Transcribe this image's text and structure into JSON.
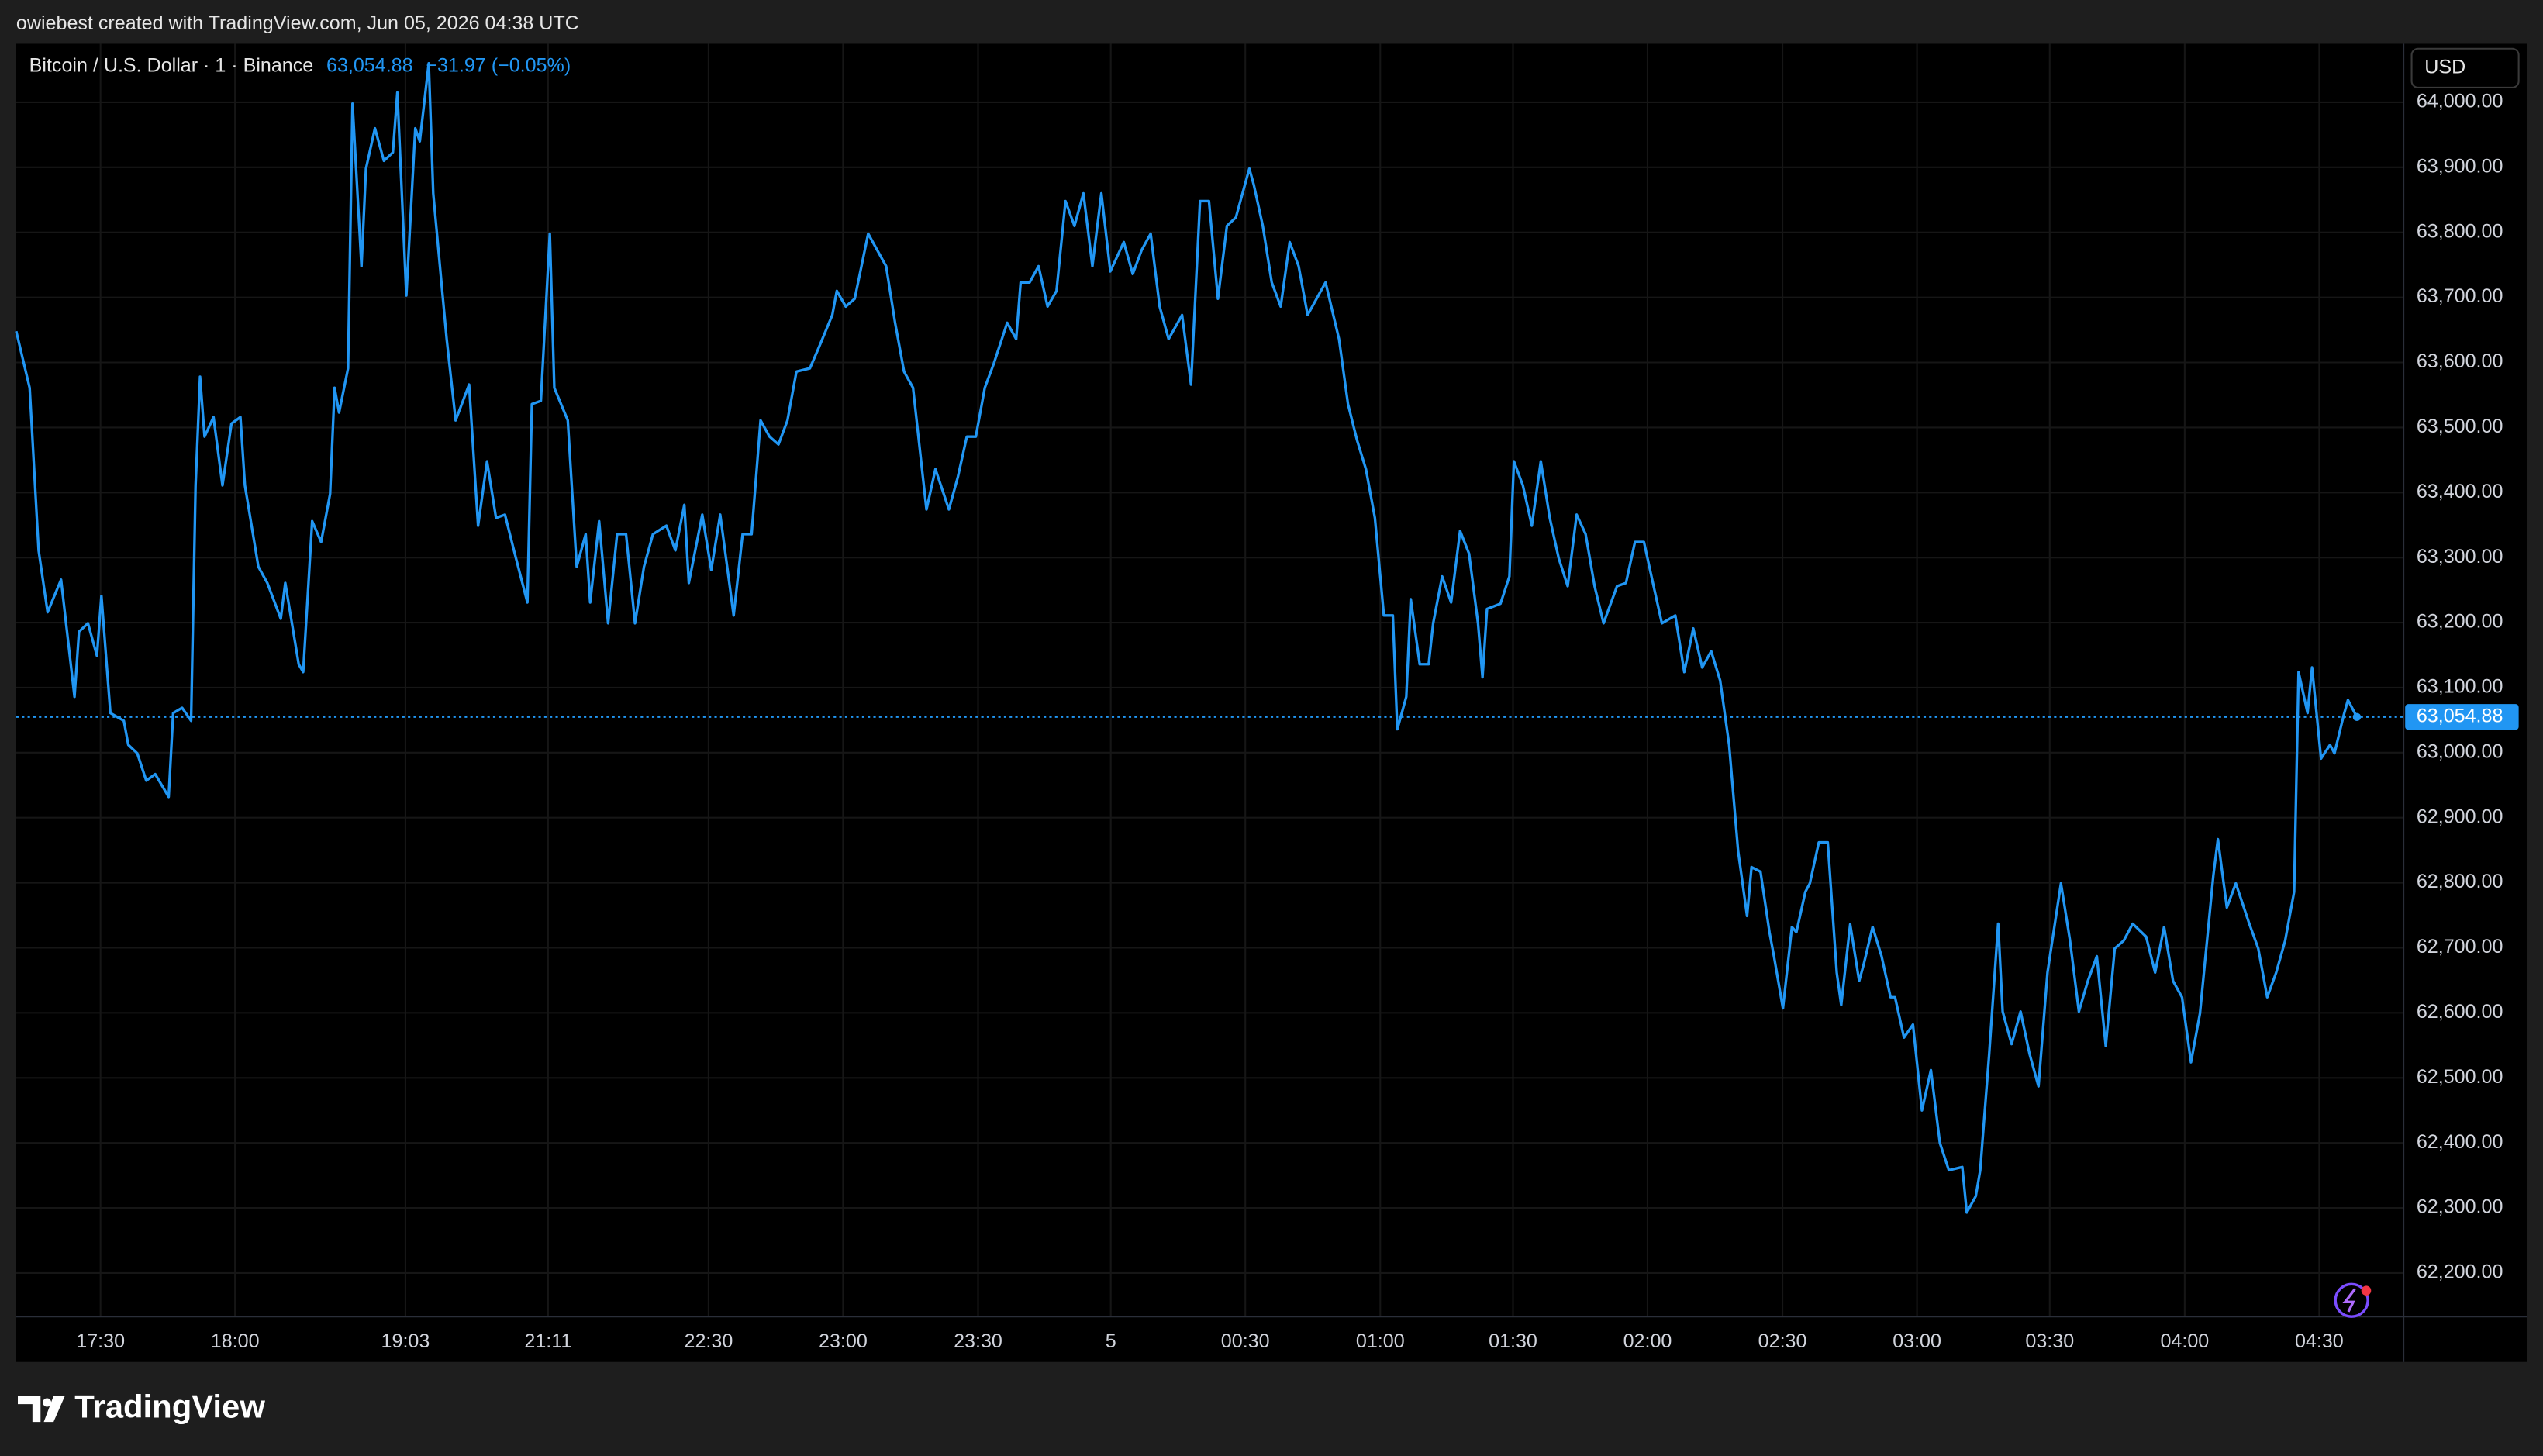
{
  "header": {
    "credit": "owiebest created with TradingView.com, Jun 05, 2026 04:38 UTC",
    "price": "63,054.88",
    "change": "−31.97 (−0.05%)",
    "currency": "USD"
  },
  "footer": {
    "brand": "TradingView"
  },
  "chart_data": {
    "type": "line",
    "series": [
      {
        "name": "Bitcoin / U.S. Dollar · 1 · Binance",
        "color": "#2196f3",
        "values": [
          63648,
          63561,
          63311,
          63216,
          63266,
          63086,
          63186,
          63199,
          63149,
          63241,
          63061,
          63049,
          63012,
          62999,
          62957,
          62967,
          62932,
          63061,
          63069,
          63049,
          63411,
          63578,
          63486,
          63516,
          63411,
          63506,
          63516,
          63411,
          63286,
          63261,
          63206,
          63261,
          63136,
          63124,
          63356,
          63324,
          63398,
          63561,
          63523,
          63591,
          63998,
          63748,
          63898,
          63960,
          63910,
          63923,
          64015,
          63703,
          63960,
          63940,
          64060,
          63860,
          63710,
          63636,
          63511,
          63566,
          63349,
          63448,
          63361,
          63366,
          63311,
          63231,
          63536,
          63541,
          63798,
          63561,
          63511,
          63286,
          63336,
          63231,
          63356,
          63199,
          63336,
          63336,
          63199,
          63286,
          63336,
          63349,
          63311,
          63381,
          63261,
          63366,
          63281,
          63366,
          63211,
          63336,
          63336,
          63511,
          63486,
          63474,
          63511,
          63586,
          63591,
          63623,
          63673,
          63710,
          63686,
          63698,
          63798,
          63773,
          63748,
          63661,
          63586,
          63561,
          63436,
          63374,
          63436,
          63374,
          63424,
          63486,
          63486,
          63561,
          63598,
          63661,
          63636,
          63723,
          63723,
          63748,
          63686,
          63710,
          63848,
          63810,
          63860,
          63748,
          63860,
          63740,
          63785,
          63736,
          63773,
          63798,
          63686,
          63636,
          63673,
          63566,
          63848,
          63848,
          63698,
          63810,
          63823,
          63898,
          63873,
          63810,
          63723,
          63686,
          63785,
          63748,
          63673,
          63698,
          63723,
          63636,
          63536,
          63481,
          63436,
          63361,
          63211,
          63211,
          63036,
          63086,
          63236,
          63136,
          63136,
          63199,
          63271,
          63231,
          63341,
          63306,
          63199,
          63116,
          63221,
          63229,
          63271,
          63448,
          63411,
          63349,
          63448,
          63361,
          63299,
          63256,
          63366,
          63336,
          63256,
          63199,
          63256,
          63261,
          63324,
          63324,
          63261,
          63199,
          63211,
          63124,
          63191,
          63131,
          63156,
          63111,
          63012,
          62849,
          62749,
          62824,
          62817,
          62724,
          62687,
          62607,
          62732,
          62724,
          62786,
          62799,
          62862,
          62862,
          62662,
          62612,
          62736,
          62649,
          62674,
          62732,
          62687,
          62624,
          62624,
          62562,
          62582,
          62450,
          62512,
          62400,
          62358,
          62363,
          62293,
          62318,
          62358,
          62537,
          62737,
          62602,
          62552,
          62602,
          62537,
          62487,
          62662,
          62799,
          62712,
          62602,
          62649,
          62687,
          62549,
          62699,
          62711,
          62737,
          62717,
          62662,
          62732,
          62649,
          62624,
          62524,
          62599,
          62812,
          62867,
          62762,
          62799,
          62737,
          62699,
          62624,
          62662,
          62711,
          62786,
          63124,
          63061,
          63131,
          62991,
          63012,
          62999,
          63056,
          63081,
          63054.88
        ]
      }
    ],
    "x": [
      0,
      3,
      5,
      7,
      10,
      13,
      14,
      16,
      18,
      19,
      21,
      24,
      25,
      27,
      29,
      31,
      34,
      35,
      37,
      39,
      40,
      41,
      42,
      44,
      46,
      48,
      50,
      51,
      54,
      56,
      59,
      60,
      63,
      64,
      66,
      68,
      70,
      71,
      72,
      74,
      75,
      77,
      78,
      80,
      82,
      84,
      85,
      87,
      89,
      90,
      92,
      93,
      95,
      96,
      98,
      101,
      103,
      105,
      107,
      109,
      111,
      114,
      115,
      117,
      119,
      120,
      123,
      125,
      127,
      128,
      130,
      132,
      134,
      136,
      138,
      140,
      142,
      145,
      147,
      149,
      150,
      153,
      155,
      157,
      160,
      162,
      164,
      166,
      168,
      170,
      172,
      174,
      177,
      179,
      182,
      183,
      185,
      187,
      190,
      192,
      194,
      196,
      198,
      200,
      202,
      203,
      205,
      208,
      210,
      212,
      214,
      216,
      218,
      221,
      223,
      224,
      226,
      228,
      230,
      232,
      234,
      236,
      238,
      240,
      242,
      244,
      247,
      249,
      251,
      253,
      255,
      257,
      260,
      262,
      264,
      266,
      268,
      270,
      272,
      275,
      276,
      278,
      280,
      282,
      284,
      286,
      288,
      290,
      292,
      295,
      297,
      299,
      301,
      303,
      305,
      307,
      308,
      310,
      311,
      313,
      315,
      316,
      318,
      320,
      322,
      324,
      326,
      327,
      328,
      331,
      333,
      334,
      336,
      338,
      340,
      342,
      344,
      346,
      348,
      350,
      352,
      354,
      357,
      359,
      361,
      363,
      365,
      367,
      370,
      372,
      374,
      376,
      378,
      380,
      382,
      384,
      386,
      387,
      389,
      391,
      392,
      394,
      396,
      397,
      399,
      400,
      402,
      404,
      406,
      407,
      409,
      411,
      412,
      414,
      416,
      418,
      419,
      421,
      423,
      425,
      427,
      429,
      431,
      434,
      435,
      437,
      438,
      440,
      442,
      443,
      445,
      447,
      449,
      451,
      453,
      456,
      458,
      460,
      462,
      464,
      466,
      468,
      470,
      472,
      475,
      477,
      479,
      481,
      483,
      485,
      487,
      490,
      491,
      493,
      495,
      498,
      500,
      502,
      504,
      506,
      508,
      509,
      511,
      512,
      514,
      516,
      517,
      519,
      520,
      522
    ],
    "xlim": [
      0,
      532.4
    ],
    "xticks": [
      {
        "value": 18.8,
        "label": "17:30"
      },
      {
        "value": 48.8,
        "label": "18:00"
      },
      {
        "value": 86.8,
        "label": "19:03"
      },
      {
        "value": 118.6,
        "label": "21:11"
      },
      {
        "value": 154.4,
        "label": "22:30"
      },
      {
        "value": 184.4,
        "label": "23:00"
      },
      {
        "value": 214.5,
        "label": "23:30"
      },
      {
        "value": 244.1,
        "label": "5"
      },
      {
        "value": 274.1,
        "label": "00:30"
      },
      {
        "value": 304.2,
        "label": "01:00"
      },
      {
        "value": 333.8,
        "label": "01:30"
      },
      {
        "value": 363.8,
        "label": "02:00"
      },
      {
        "value": 393.9,
        "label": "02:30"
      },
      {
        "value": 423.9,
        "label": "03:00"
      },
      {
        "value": 453.5,
        "label": "03:30"
      },
      {
        "value": 483.6,
        "label": "04:00"
      },
      {
        "value": 513.6,
        "label": "04:30"
      }
    ],
    "ylim": [
      62133,
      64090
    ],
    "yticks": [
      {
        "value": 62200,
        "label": "62,200.00"
      },
      {
        "value": 62300,
        "label": "62,300.00"
      },
      {
        "value": 62400,
        "label": "62,400.00"
      },
      {
        "value": 62500,
        "label": "62,500.00"
      },
      {
        "value": 62600,
        "label": "62,600.00"
      },
      {
        "value": 62700,
        "label": "62,700.00"
      },
      {
        "value": 62800,
        "label": "62,800.00"
      },
      {
        "value": 62900,
        "label": "62,900.00"
      },
      {
        "value": 63000,
        "label": "63,000.00"
      },
      {
        "value": 63100,
        "label": "63,100.00"
      },
      {
        "value": 63200,
        "label": "63,200.00"
      },
      {
        "value": 63300,
        "label": "63,300.00"
      },
      {
        "value": 63400,
        "label": "63,400.00"
      },
      {
        "value": 63500,
        "label": "63,500.00"
      },
      {
        "value": 63600,
        "label": "63,600.00"
      },
      {
        "value": 63700,
        "label": "63,700.00"
      },
      {
        "value": 63800,
        "label": "63,800.00"
      },
      {
        "value": 63900,
        "label": "63,900.00"
      },
      {
        "value": 64000,
        "label": "64,000.00"
      }
    ],
    "last_price": {
      "value": 63054.88,
      "label": "63,054.88"
    },
    "grid": true
  }
}
